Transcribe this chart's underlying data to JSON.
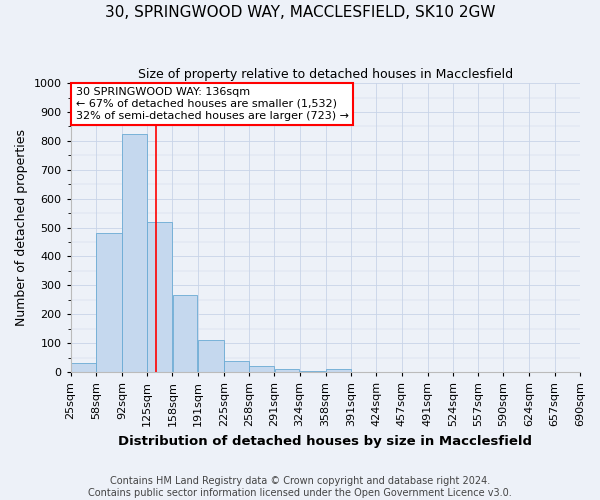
{
  "title_line1": "30, SPRINGWOOD WAY, MACCLESFIELD, SK10 2GW",
  "title_line2": "Size of property relative to detached houses in Macclesfield",
  "xlabel": "Distribution of detached houses by size in Macclesfield",
  "ylabel": "Number of detached properties",
  "bin_edges": [
    25,
    58,
    92,
    125,
    158,
    191,
    225,
    258,
    291,
    324,
    358,
    391,
    424,
    457,
    491,
    524,
    557,
    590,
    624,
    657,
    690
  ],
  "bar_heights": [
    30,
    480,
    825,
    520,
    265,
    110,
    38,
    20,
    10,
    5,
    10,
    0,
    0,
    0,
    0,
    0,
    0,
    0,
    0,
    0
  ],
  "bar_color": "#c5d8ee",
  "bar_edgecolor": "#6aaad4",
  "vline_x": 136,
  "vline_color": "red",
  "annotation_text_line1": "30 SPRINGWOOD WAY: 136sqm",
  "annotation_text_line2": "← 67% of detached houses are smaller (1,532)",
  "annotation_text_line3": "32% of semi-detached houses are larger (723) →",
  "annotation_fontsize": 8.0,
  "annotation_box_edgecolor": "red",
  "annotation_box_facecolor": "white",
  "ylim": [
    0,
    1000
  ],
  "yticks": [
    0,
    100,
    200,
    300,
    400,
    500,
    600,
    700,
    800,
    900,
    1000
  ],
  "grid_color": "#c8d4e8",
  "background_color": "#edf1f8",
  "title_fontsize": 11,
  "subtitle_fontsize": 9,
  "ylabel_fontsize": 9,
  "xlabel_fontsize": 9.5,
  "tick_fontsize": 8,
  "footer_line1": "Contains HM Land Registry data © Crown copyright and database right 2024.",
  "footer_line2": "Contains public sector information licensed under the Open Government Licence v3.0.",
  "footer_fontsize": 7.0
}
